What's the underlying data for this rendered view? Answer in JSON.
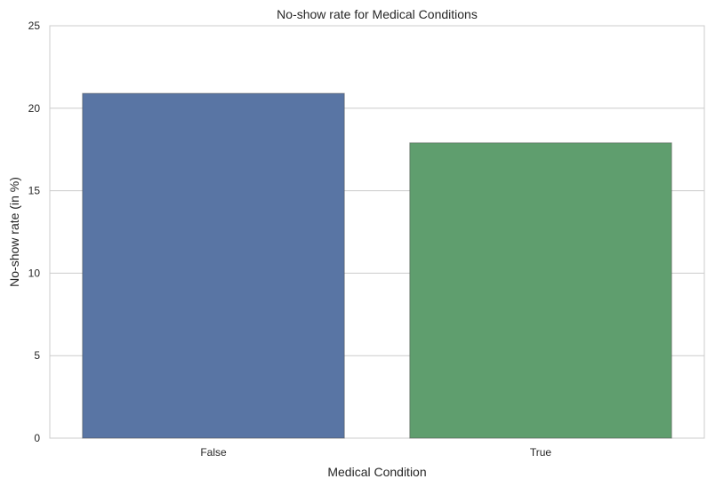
{
  "chart_data": {
    "type": "bar",
    "title": "No-show rate for Medical Conditions",
    "xlabel": "Medical Condition",
    "ylabel": "No-show rate (in %)",
    "categories": [
      "False",
      "True"
    ],
    "values": [
      20.9,
      17.9
    ],
    "ylim": [
      0,
      25
    ],
    "yticks": [
      0,
      5,
      10,
      15,
      20,
      25
    ],
    "grid": true,
    "colors": [
      "#5975a4",
      "#5f9e6e"
    ]
  }
}
